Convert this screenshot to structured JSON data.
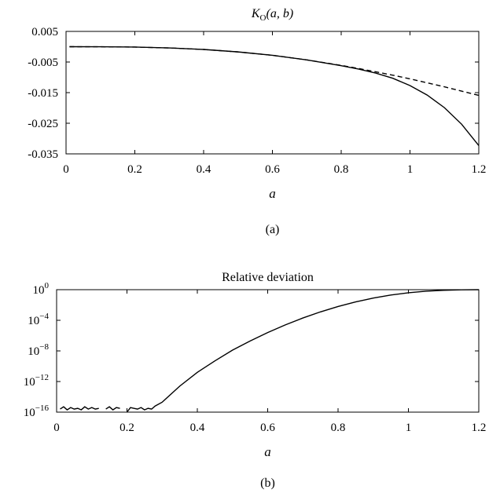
{
  "figure": {
    "caption_a": "(a)",
    "caption_b": "(b)"
  },
  "chart_data": [
    {
      "id": "a",
      "type": "line",
      "title_main": "K",
      "title_sub": "O",
      "title_args": "(a, b)",
      "xlabel": "a",
      "ylabel": "",
      "xlim": [
        0,
        1.2
      ],
      "ylim": [
        -0.035,
        0.005
      ],
      "xticks": [
        0,
        0.2,
        0.4,
        0.6,
        0.8,
        1,
        1.2
      ],
      "xtick_labels": [
        "0",
        "0.2",
        "0.4",
        "0.6",
        "0.8",
        "1",
        "1.2"
      ],
      "yticks": [
        0.005,
        -0.005,
        -0.015,
        -0.025,
        -0.035
      ],
      "ytick_labels": [
        "0.005",
        "-0.005",
        "-0.015",
        "-0.025",
        "-0.035"
      ],
      "grid": false,
      "series": [
        {
          "style": "solid",
          "x": [
            0.01,
            0.1,
            0.2,
            0.3,
            0.4,
            0.5,
            0.6,
            0.7,
            0.8,
            0.85,
            0.9,
            0.95,
            1.0,
            1.05,
            1.1,
            1.15,
            1.2
          ],
          "y": [
            0.0,
            -2e-05,
            -0.00012,
            -0.0004,
            -0.0009,
            -0.0017,
            -0.0028,
            -0.0043,
            -0.0062,
            -0.0073,
            -0.0086,
            -0.0103,
            -0.0127,
            -0.0158,
            -0.0199,
            -0.0253,
            -0.0323
          ]
        },
        {
          "style": "dashed",
          "x": [
            0.01,
            0.1,
            0.2,
            0.3,
            0.4,
            0.5,
            0.6,
            0.7,
            0.8,
            0.85,
            0.9,
            0.95,
            1.0,
            1.05,
            1.1,
            1.15,
            1.2
          ],
          "y": [
            0.0,
            -2e-05,
            -0.00012,
            -0.0004,
            -0.0009,
            -0.0017,
            -0.0028,
            -0.0043,
            -0.0061,
            -0.0071,
            -0.0082,
            -0.0093,
            -0.0105,
            -0.0118,
            -0.0131,
            -0.0145,
            -0.0159
          ]
        }
      ]
    },
    {
      "id": "b",
      "type": "line",
      "title": "Relative deviation",
      "xlabel": "a",
      "ylabel": "",
      "yscale": "log",
      "xlim": [
        0,
        1.2
      ],
      "ylim_exp": [
        -16,
        0
      ],
      "xticks": [
        0,
        0.2,
        0.4,
        0.6,
        0.8,
        1,
        1.2
      ],
      "xtick_labels": [
        "0",
        "0.2",
        "0.4",
        "0.6",
        "0.8",
        "1",
        "1.2"
      ],
      "ytick_exponents": [
        0,
        -4,
        -8,
        -12,
        -16
      ],
      "ytick_base": "10",
      "ytick_exp_labels": [
        "0",
        "−4",
        "−8",
        "−12",
        "−16"
      ],
      "grid": false,
      "series": [
        {
          "style": "solid",
          "segments": [
            {
              "x": [
                0.01,
                0.02,
                0.03,
                0.04,
                0.05,
                0.06,
                0.07,
                0.08,
                0.09,
                0.1,
                0.11,
                0.12
              ],
              "log10_y": [
                -15.6,
                -15.3,
                -15.7,
                -15.4,
                -15.6,
                -15.5,
                -15.7,
                -15.3,
                -15.6,
                -15.4,
                -15.6,
                -15.5
              ]
            },
            {
              "x": [
                0.14,
                0.15,
                0.16,
                0.17,
                0.18
              ],
              "log10_y": [
                -15.6,
                -15.3,
                -15.7,
                -15.4,
                -15.5
              ]
            },
            {
              "x": [
                0.2,
                0.21,
                0.22,
                0.23,
                0.24,
                0.25,
                0.26,
                0.27,
                0.28,
                0.3,
                0.35,
                0.4,
                0.45,
                0.5,
                0.55,
                0.6,
                0.65,
                0.7,
                0.75,
                0.8,
                0.85,
                0.9,
                0.95,
                1.0,
                1.05,
                1.1,
                1.15,
                1.2
              ],
              "log10_y": [
                -16.0,
                -15.4,
                -15.5,
                -15.6,
                -15.4,
                -15.7,
                -15.5,
                -15.6,
                -15.2,
                -14.7,
                -12.6,
                -10.8,
                -9.3,
                -7.9,
                -6.7,
                -5.6,
                -4.6,
                -3.7,
                -2.9,
                -2.2,
                -1.6,
                -1.1,
                -0.7,
                -0.4,
                -0.2,
                -0.08,
                -0.02,
                0.0
              ]
            }
          ]
        }
      ]
    }
  ]
}
